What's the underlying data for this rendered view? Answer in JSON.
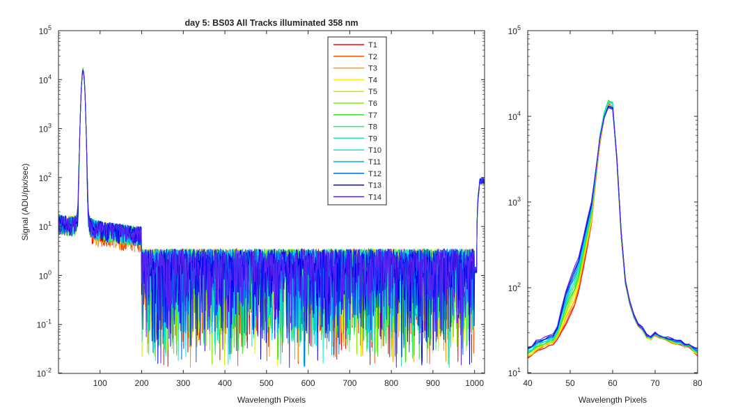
{
  "chart_data": [
    {
      "type": "line",
      "title": "day 5: BS03   All Tracks illuminated   358 nm",
      "xlabel": "Wavelength Pixels",
      "ylabel": "Signal (ADU/pix/sec)",
      "xlim": [
        0,
        1024
      ],
      "ylim": [
        0.01,
        100000
      ],
      "yscale": "log",
      "xticks": [
        100,
        200,
        300,
        400,
        500,
        600,
        700,
        800,
        900,
        1000
      ],
      "yticks": [
        0.01,
        0.1,
        1,
        10,
        100,
        1000,
        10000,
        100000
      ],
      "ytick_mantissa": "10",
      "ytick_exponents": [
        "-2",
        "-1",
        "0",
        "1",
        "2",
        "3",
        "4",
        "5"
      ],
      "legend_position": "top-center",
      "series_names": [
        "T1",
        "T2",
        "T3",
        "T4",
        "T5",
        "T6",
        "T7",
        "T8",
        "T9",
        "T10",
        "T11",
        "T12",
        "T13",
        "T14"
      ],
      "series_colors": [
        "#ff0000",
        "#ff5500",
        "#ff9900",
        "#ffee00",
        "#c8f000",
        "#80ee00",
        "#33dd22",
        "#22ee66",
        "#22ddaa",
        "#00eedd",
        "#00aaee",
        "#0066ee",
        "#0000ee",
        "#5522ee"
      ],
      "model": {
        "baseline_left": 10,
        "peak_center": 59,
        "peak_value": 15000,
        "background_level": 1.3,
        "right_edge_value": 85
      }
    },
    {
      "type": "line",
      "title": "",
      "xlabel": "Wavelength Pixels",
      "ylabel": "",
      "xlim": [
        40,
        80
      ],
      "ylim": [
        10,
        100000
      ],
      "yscale": "log",
      "xticks": [
        40,
        50,
        60,
        70,
        80
      ],
      "yticks": [
        10,
        100,
        1000,
        10000,
        100000
      ],
      "ytick_mantissa": "10",
      "ytick_exponents": [
        "1",
        "2",
        "3",
        "4",
        "5"
      ],
      "series_names": [
        "T1",
        "T2",
        "T3",
        "T4",
        "T5",
        "T6",
        "T7",
        "T8",
        "T9",
        "T10",
        "T11",
        "T12",
        "T13",
        "T14"
      ],
      "x": [
        40,
        41,
        42,
        43,
        44,
        45,
        46,
        47,
        48,
        49,
        50,
        51,
        52,
        53,
        54,
        55,
        56,
        57,
        58,
        59,
        60,
        61,
        62,
        63,
        64,
        65,
        66,
        67,
        68,
        69,
        70,
        71,
        72,
        73,
        74,
        75,
        76,
        77,
        78,
        79,
        80
      ],
      "reference_values_T1": [
        15,
        16,
        18,
        19,
        20,
        21,
        22,
        25,
        30,
        38,
        48,
        60,
        90,
        160,
        290,
        550,
        1700,
        4800,
        9500,
        14000,
        13000,
        3000,
        400,
        110,
        65,
        45,
        36,
        32,
        26,
        25,
        28,
        26,
        25,
        24,
        23,
        22,
        22,
        20,
        21,
        18,
        16
      ],
      "reference_values_T13": [
        20,
        21,
        24,
        25,
        26,
        27,
        28,
        35,
        58,
        92,
        130,
        170,
        230,
        380,
        620,
        1000,
        2300,
        5600,
        9800,
        13000,
        12500,
        3200,
        450,
        120,
        70,
        48,
        38,
        34,
        28,
        27,
        30,
        28,
        27,
        26,
        25,
        24,
        24,
        22,
        22,
        20,
        19
      ]
    }
  ]
}
